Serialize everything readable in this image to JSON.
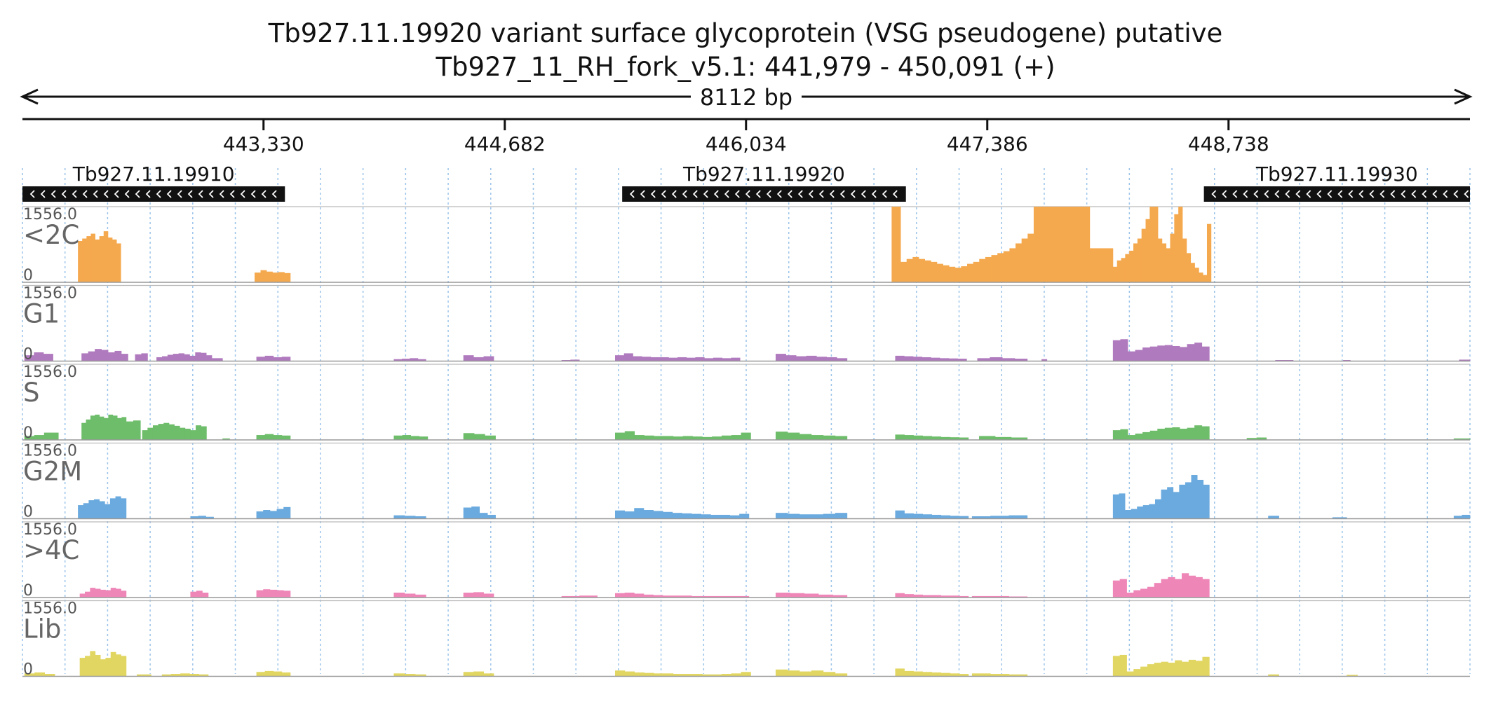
{
  "chart_data": {
    "type": "bar",
    "title": "Tb927.11.19920  variant surface glycoprotein (VSG  pseudogene)  putative",
    "subtitle": "Tb927_11_RH_fork_v5.1: 441,979 - 450,091 (+)",
    "span_label": "8112 bp",
    "x_range": [
      441979,
      450091
    ],
    "x_ticks": [
      443330,
      444682,
      446034,
      447386,
      448738
    ],
    "x_tick_labels": [
      "443,330",
      "444,682",
      "446,034",
      "447,386",
      "448,738"
    ],
    "genes": [
      {
        "name": "Tb927.11.19910",
        "start": 441979,
        "end": 443450,
        "strand": "-"
      },
      {
        "name": "Tb927.11.19920",
        "start": 445340,
        "end": 446930,
        "strand": "-"
      },
      {
        "name": "Tb927.11.19930",
        "start": 448600,
        "end": 450091,
        "strand": "-"
      }
    ],
    "ylim": [
      0,
      1556.0
    ],
    "y_max_label": "1556.0",
    "y_min_label": "0",
    "series": [
      {
        "name": "<2C",
        "color": "#f5a94e",
        "segments": [
          {
            "start": 442290,
            "end": 442530,
            "values": [
              850,
              900,
              950,
              1000,
              880,
              950,
              1050,
              920,
              880,
              800
            ]
          },
          {
            "start": 443280,
            "end": 443480,
            "values": [
              200,
              250,
              220,
              200,
              210,
              190
            ]
          },
          {
            "start": 446850,
            "end": 446900,
            "values": [
              1556,
              1556
            ]
          },
          {
            "start": 446900,
            "end": 447680,
            "values": [
              420,
              480,
              520,
              480,
              450,
              420,
              380,
              350,
              320,
              300,
              330,
              380,
              420,
              480,
              520,
              560,
              600,
              640,
              700,
              800,
              900,
              1000,
              1556
            ]
          },
          {
            "start": 447680,
            "end": 447700,
            "values": [
              1556
            ]
          },
          {
            "start": 447700,
            "end": 448090,
            "values": [
              1556,
              1556,
              700
            ]
          },
          {
            "start": 448090,
            "end": 448640,
            "values": [
              320,
              450,
              500,
              580,
              650,
              800,
              900,
              1100,
              1300,
              1556,
              1556,
              900,
              800,
              700,
              1000,
              1400,
              1556,
              900,
              600,
              400,
              300,
              200,
              150,
              1200
            ]
          }
        ]
      },
      {
        "name": "G1",
        "color": "#b07abe",
        "segments": [
          {
            "start": 441990,
            "end": 442150,
            "values": [
              120,
              180,
              150
            ]
          },
          {
            "start": 442310,
            "end": 442570,
            "values": [
              160,
              200,
              250,
              230,
              180,
              210,
              150
            ]
          },
          {
            "start": 442610,
            "end": 442680,
            "values": [
              140,
              160
            ]
          },
          {
            "start": 442730,
            "end": 443040,
            "values": [
              80,
              100,
              130,
              150,
              160,
              140,
              110,
              180,
              170,
              120
            ]
          },
          {
            "start": 443040,
            "end": 443100,
            "values": [
              60
            ]
          },
          {
            "start": 443290,
            "end": 443480,
            "values": [
              90,
              110,
              80,
              90
            ]
          },
          {
            "start": 444060,
            "end": 444240,
            "values": [
              40,
              50,
              60,
              40
            ]
          },
          {
            "start": 444450,
            "end": 444620,
            "values": [
              120,
              80,
              100
            ]
          },
          {
            "start": 445000,
            "end": 445100,
            "values": [
              20,
              30
            ]
          },
          {
            "start": 445300,
            "end": 446000,
            "values": [
              120,
              160,
              100,
              90,
              80,
              80,
              70,
              80,
              70,
              80,
              60,
              70,
              60,
              70
            ]
          },
          {
            "start": 446200,
            "end": 446600,
            "values": [
              150,
              120,
              100,
              110,
              90,
              80,
              60
            ]
          },
          {
            "start": 446870,
            "end": 447270,
            "values": [
              110,
              100,
              90,
              80,
              70,
              60,
              55,
              50
            ]
          },
          {
            "start": 447330,
            "end": 447610,
            "values": [
              60,
              80,
              60,
              50
            ]
          },
          {
            "start": 447690,
            "end": 447720,
            "values": [
              40
            ]
          },
          {
            "start": 448090,
            "end": 448630,
            "values": [
              430,
              450,
              200,
              230,
              280,
              300,
              320,
              330,
              310,
              290,
              350,
              380,
              300
            ]
          },
          {
            "start": 449000,
            "end": 449100,
            "values": [
              20
            ]
          },
          {
            "start": 449380,
            "end": 449420,
            "values": [
              20
            ]
          },
          {
            "start": 450030,
            "end": 450091,
            "values": [
              30
            ]
          }
        ]
      },
      {
        "name": "S",
        "color": "#6ebd6a",
        "segments": [
          {
            "start": 441990,
            "end": 442100,
            "values": [
              80,
              100
            ]
          },
          {
            "start": 442100,
            "end": 442180,
            "values": [
              150
            ]
          },
          {
            "start": 442310,
            "end": 442560,
            "values": [
              350,
              420,
              500,
              520,
              480,
              450,
              520,
              500,
              450,
              470
            ]
          },
          {
            "start": 442560,
            "end": 442640,
            "values": [
              380,
              400
            ]
          },
          {
            "start": 442650,
            "end": 443010,
            "values": [
              200,
              250,
              300,
              330,
              350,
              320,
              290,
              250,
              230,
              200,
              300,
              280
            ]
          },
          {
            "start": 443100,
            "end": 443140,
            "values": [
              30
            ]
          },
          {
            "start": 443290,
            "end": 443480,
            "values": [
              100,
              120,
              100,
              90
            ]
          },
          {
            "start": 444060,
            "end": 444250,
            "values": [
              90,
              100,
              80,
              70
            ]
          },
          {
            "start": 444450,
            "end": 444630,
            "values": [
              140,
              120,
              90
            ]
          },
          {
            "start": 445300,
            "end": 446060,
            "values": [
              150,
              180,
              100,
              90,
              80,
              80,
              70,
              80,
              70,
              60,
              70,
              90,
              100,
              150
            ]
          },
          {
            "start": 446200,
            "end": 446600,
            "values": [
              170,
              150,
              120,
              100,
              90,
              80
            ]
          },
          {
            "start": 446870,
            "end": 447280,
            "values": [
              110,
              100,
              90,
              80,
              70,
              60,
              55,
              50
            ]
          },
          {
            "start": 447340,
            "end": 447610,
            "values": [
              80,
              60,
              50
            ]
          },
          {
            "start": 448090,
            "end": 448630,
            "values": [
              200,
              220,
              100,
              130,
              160,
              190,
              230,
              250,
              260,
              230,
              250,
              300,
              280
            ]
          },
          {
            "start": 448840,
            "end": 448950,
            "values": [
              40,
              50
            ]
          },
          {
            "start": 450000,
            "end": 450091,
            "values": [
              30
            ]
          }
        ]
      },
      {
        "name": "G2M",
        "color": "#6aaade",
        "segments": [
          {
            "start": 442290,
            "end": 442560,
            "values": [
              280,
              320,
              380,
              400,
              360,
              300,
              420,
              460,
              420
            ]
          },
          {
            "start": 442920,
            "end": 443050,
            "values": [
              50,
              60,
              40
            ]
          },
          {
            "start": 443290,
            "end": 443480,
            "values": [
              150,
              180,
              160,
              200,
              240
            ]
          },
          {
            "start": 444060,
            "end": 444240,
            "values": [
              70,
              60,
              50
            ]
          },
          {
            "start": 444450,
            "end": 444630,
            "values": [
              230,
              250,
              120,
              80
            ]
          },
          {
            "start": 445300,
            "end": 446050,
            "values": [
              170,
              150,
              220,
              180,
              160,
              140,
              120,
              110,
              100,
              90,
              80,
              80,
              70,
              100
            ]
          },
          {
            "start": 446200,
            "end": 446600,
            "values": [
              120,
              100,
              90,
              90,
              100,
              120
            ]
          },
          {
            "start": 446870,
            "end": 447280,
            "values": [
              170,
              110,
              100,
              90,
              80,
              70,
              60,
              55
            ]
          },
          {
            "start": 447300,
            "end": 447610,
            "values": [
              50,
              60,
              70
            ]
          },
          {
            "start": 448090,
            "end": 448630,
            "values": [
              500,
              520,
              180,
              200,
              250,
              280,
              300,
              400,
              600,
              650,
              550,
              700,
              750,
              900,
              800,
              700
            ]
          },
          {
            "start": 448960,
            "end": 449020,
            "values": [
              60
            ]
          },
          {
            "start": 449320,
            "end": 449400,
            "values": [
              30
            ]
          },
          {
            "start": 450000,
            "end": 450091,
            "values": [
              60,
              80
            ]
          }
        ]
      },
      {
        "name": ">4C",
        "color": "#ee86b8",
        "segments": [
          {
            "start": 442300,
            "end": 442560,
            "values": [
              80,
              120,
              200,
              180,
              160,
              150,
              200,
              180,
              140
            ]
          },
          {
            "start": 442920,
            "end": 443020,
            "values": [
              120,
              140,
              100
            ]
          },
          {
            "start": 443290,
            "end": 443480,
            "values": [
              150,
              170,
              160,
              150,
              140
            ]
          },
          {
            "start": 444060,
            "end": 444240,
            "values": [
              100,
              80,
              60
            ]
          },
          {
            "start": 444450,
            "end": 444620,
            "values": [
              100,
              110,
              80
            ]
          },
          {
            "start": 445000,
            "end": 445200,
            "values": [
              30,
              40
            ]
          },
          {
            "start": 445300,
            "end": 446050,
            "values": [
              90,
              100,
              80,
              60,
              50,
              40,
              40,
              40,
              30,
              30,
              30,
              30,
              30,
              30
            ]
          },
          {
            "start": 446200,
            "end": 446600,
            "values": [
              100,
              90,
              80,
              60,
              50
            ]
          },
          {
            "start": 446870,
            "end": 447280,
            "values": [
              90,
              70,
              60,
              50,
              50,
              40,
              40,
              30
            ]
          },
          {
            "start": 447300,
            "end": 447610,
            "values": [
              30,
              30,
              20
            ]
          },
          {
            "start": 448090,
            "end": 448630,
            "values": [
              350,
              380,
              100,
              150,
              180,
              220,
              300,
              380,
              420,
              380,
              500,
              450,
              420,
              380
            ]
          }
        ]
      },
      {
        "name": "Lib",
        "color": "#e1d661",
        "segments": [
          {
            "start": 441990,
            "end": 442160,
            "values": [
              60,
              80,
              50
            ]
          },
          {
            "start": 442300,
            "end": 442560,
            "values": [
              380,
              420,
              520,
              440,
              350,
              380,
              500,
              450,
              420
            ]
          },
          {
            "start": 442620,
            "end": 442700,
            "values": [
              40
            ]
          },
          {
            "start": 442760,
            "end": 443020,
            "values": [
              40,
              50,
              60,
              50,
              40
            ]
          },
          {
            "start": 443290,
            "end": 443480,
            "values": [
              90,
              110,
              100,
              80
            ]
          },
          {
            "start": 444060,
            "end": 444240,
            "values": [
              60,
              50,
              40
            ]
          },
          {
            "start": 444450,
            "end": 444620,
            "values": [
              90,
              100,
              60
            ]
          },
          {
            "start": 445300,
            "end": 446060,
            "values": [
              120,
              100,
              80,
              70,
              60,
              60,
              50,
              50,
              50,
              40,
              40,
              50,
              60,
              90
            ]
          },
          {
            "start": 446200,
            "end": 446600,
            "values": [
              140,
              120,
              100,
              120,
              90,
              60
            ]
          },
          {
            "start": 446870,
            "end": 447280,
            "values": [
              160,
              110,
              100,
              90,
              80,
              70,
              60,
              50
            ]
          },
          {
            "start": 447300,
            "end": 447610,
            "values": [
              60,
              50,
              40
            ]
          },
          {
            "start": 448090,
            "end": 448630,
            "values": [
              420,
              440,
              100,
              150,
              200,
              250,
              280,
              300,
              280,
              330,
              300,
              340,
              320,
              400
            ]
          },
          {
            "start": 448960,
            "end": 449020,
            "values": [
              40
            ]
          },
          {
            "start": 449400,
            "end": 449460,
            "values": [
              30
            ]
          }
        ]
      }
    ]
  }
}
